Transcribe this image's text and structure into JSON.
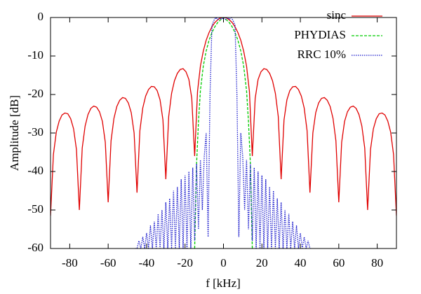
{
  "chart_data": {
    "type": "line",
    "xlabel": "f [kHz]",
    "ylabel": "Amplitude [dB]",
    "xlim": [
      -90,
      90
    ],
    "xticks": [
      -80,
      -60,
      -40,
      -20,
      0,
      20,
      40,
      60,
      80
    ],
    "ylim": [
      -60,
      0
    ],
    "yticks": [
      -60,
      -50,
      -40,
      -30,
      -20,
      -10,
      0
    ],
    "grid": false,
    "legend": "top-right",
    "series": [
      {
        "name": "sinc",
        "color": "#e00000",
        "line_style": "solid",
        "x": [
          -90,
          -88.5,
          -87,
          -85.5,
          -84,
          -82.5,
          -81,
          -79.5,
          -78,
          -76.5,
          -75,
          -73.5,
          -72,
          -70.5,
          -69,
          -67.5,
          -66,
          -64.5,
          -63,
          -61.5,
          -60,
          -58.5,
          -57,
          -55.5,
          -54,
          -52.5,
          -51,
          -49.5,
          -48,
          -46.5,
          -45,
          -43.5,
          -42,
          -40.5,
          -39,
          -37.5,
          -36,
          -34.5,
          -33,
          -31.5,
          -30,
          -28.5,
          -27,
          -25.5,
          -24,
          -22.5,
          -21,
          -19.5,
          -18,
          -16.5,
          -15,
          -13.5,
          -12,
          -10.5,
          -9,
          -7.5,
          -6,
          -4.5,
          -3,
          -1.5,
          0,
          1.5,
          3,
          4.5,
          6,
          7.5,
          9,
          10.5,
          12,
          13.5,
          15,
          16.5,
          18,
          19.5,
          21,
          22.5,
          24,
          25.5,
          27,
          28.5,
          30,
          31.5,
          33,
          34.5,
          36,
          37.5,
          39,
          40.5,
          42,
          43.5,
          45,
          46.5,
          48,
          49.5,
          51,
          52.5,
          54,
          55.5,
          57,
          58.5,
          60,
          61.5,
          63,
          64.5,
          66,
          67.5,
          69,
          70.5,
          72,
          73.5,
          75,
          76.5,
          78,
          79.5,
          81,
          82.5,
          84,
          85.5,
          87,
          88.5,
          90
        ],
        "values": [
          -51.5,
          -35.6,
          -29.8,
          -26.9,
          -25.3,
          -24.8,
          -25.0,
          -26.3,
          -28.9,
          -34.3,
          -50,
          -33.9,
          -28.2,
          -25.2,
          -23.6,
          -23.0,
          -23.3,
          -24.5,
          -27.0,
          -32.4,
          -48,
          -32.0,
          -26.2,
          -23.1,
          -21.5,
          -20.8,
          -21.0,
          -22.2,
          -24.7,
          -30.0,
          -45.5,
          -29.4,
          -23.5,
          -20.4,
          -18.7,
          -17.9,
          -18.0,
          -19.0,
          -21.4,
          -26.6,
          -42,
          -25.7,
          -19.7,
          -16.4,
          -14.5,
          -13.5,
          -13.3,
          -14.1,
          -16.1,
          -21.0,
          -36,
          -19.2,
          -12.6,
          -8.7,
          -5.9,
          -3.9,
          -2.4,
          -1.3,
          -0.6,
          -0.1,
          0,
          -0.1,
          -0.6,
          -1.3,
          -2.4,
          -3.9,
          -5.9,
          -8.7,
          -12.6,
          -19.2,
          -36,
          -21.0,
          -16.1,
          -14.1,
          -13.3,
          -13.5,
          -14.5,
          -16.4,
          -19.7,
          -25.7,
          -42,
          -26.6,
          -21.4,
          -19.0,
          -18.0,
          -17.9,
          -18.7,
          -20.4,
          -23.5,
          -29.4,
          -45.5,
          -30.0,
          -24.7,
          -22.2,
          -21.0,
          -20.8,
          -21.5,
          -23.1,
          -26.2,
          -32.0,
          -48,
          -32.4,
          -27.0,
          -24.5,
          -23.3,
          -23.0,
          -23.6,
          -25.2,
          -28.2,
          -33.9,
          -50,
          -34.3,
          -28.9,
          -26.3,
          -25.0,
          -24.8,
          -25.3,
          -26.9,
          -29.8,
          -35.6,
          -51.5
        ]
      },
      {
        "name": "PHYDIAS",
        "color": "#00cc00",
        "line_style": "dashed",
        "x": [
          -15,
          -14,
          -13,
          -12,
          -10.5,
          -9,
          -7.5,
          -6,
          -4.5,
          -3,
          -1.5,
          0,
          1.5,
          3,
          4.5,
          6,
          7.5,
          9,
          10.5,
          12,
          13,
          14,
          15
        ],
        "values": [
          -60,
          -38,
          -27,
          -19,
          -12.6,
          -8.7,
          -5.9,
          -3.9,
          -2.4,
          -1.3,
          -0.6,
          0,
          -0.6,
          -1.3,
          -2.4,
          -3.9,
          -5.9,
          -8.7,
          -12.6,
          -19,
          -27,
          -38,
          -60
        ]
      },
      {
        "name": "RRC 10%",
        "color": "#1a1acc",
        "line_style": "dotted",
        "x": [
          -46,
          -45,
          -44,
          -43,
          -42,
          -41,
          -40,
          -39,
          -38,
          -37,
          -36,
          -35,
          -34,
          -33,
          -32,
          -31,
          -30,
          -29,
          -28,
          -27,
          -26,
          -25,
          -24,
          -23,
          -22,
          -21,
          -20,
          -19,
          -18,
          -17,
          -16,
          -15,
          -14,
          -13,
          -12,
          -11,
          -10,
          -9,
          -8,
          -7,
          -6,
          -5,
          -4,
          -3,
          -2,
          -1,
          0,
          1,
          2,
          3,
          4,
          5,
          6,
          7,
          8,
          9,
          10,
          11,
          12,
          13,
          14,
          15,
          16,
          17,
          18,
          19,
          20,
          21,
          22,
          23,
          24,
          25,
          26,
          27,
          28,
          29,
          30,
          31,
          32,
          33,
          34,
          35,
          36,
          37,
          38,
          39,
          40,
          41,
          42,
          43,
          44,
          45,
          46
        ],
        "values": [
          -60,
          -60,
          -58,
          -60,
          -57,
          -60,
          -56,
          -60,
          -54,
          -60,
          -53,
          -60,
          -51,
          -60,
          -50,
          -60,
          -48,
          -60,
          -47,
          -60,
          -45,
          -60,
          -44,
          -60,
          -42,
          -60,
          -41,
          -60,
          -40,
          -60,
          -39,
          -58,
          -38,
          -55,
          -37,
          -50,
          -36,
          -30,
          -57,
          -20,
          -2,
          -0.8,
          0,
          -0.5,
          0,
          -0.5,
          0,
          -0.5,
          0,
          -0.5,
          0,
          -0.8,
          -2,
          -20,
          -57,
          -30,
          -36,
          -50,
          -37,
          -55,
          -38,
          -58,
          -39,
          -60,
          -40,
          -60,
          -41,
          -60,
          -42,
          -60,
          -44,
          -60,
          -45,
          -60,
          -47,
          -60,
          -48,
          -60,
          -50,
          -60,
          -51,
          -60,
          -53,
          -60,
          -54,
          -60,
          -56,
          -60,
          -57,
          -60,
          -58,
          -60,
          -60
        ]
      }
    ]
  }
}
